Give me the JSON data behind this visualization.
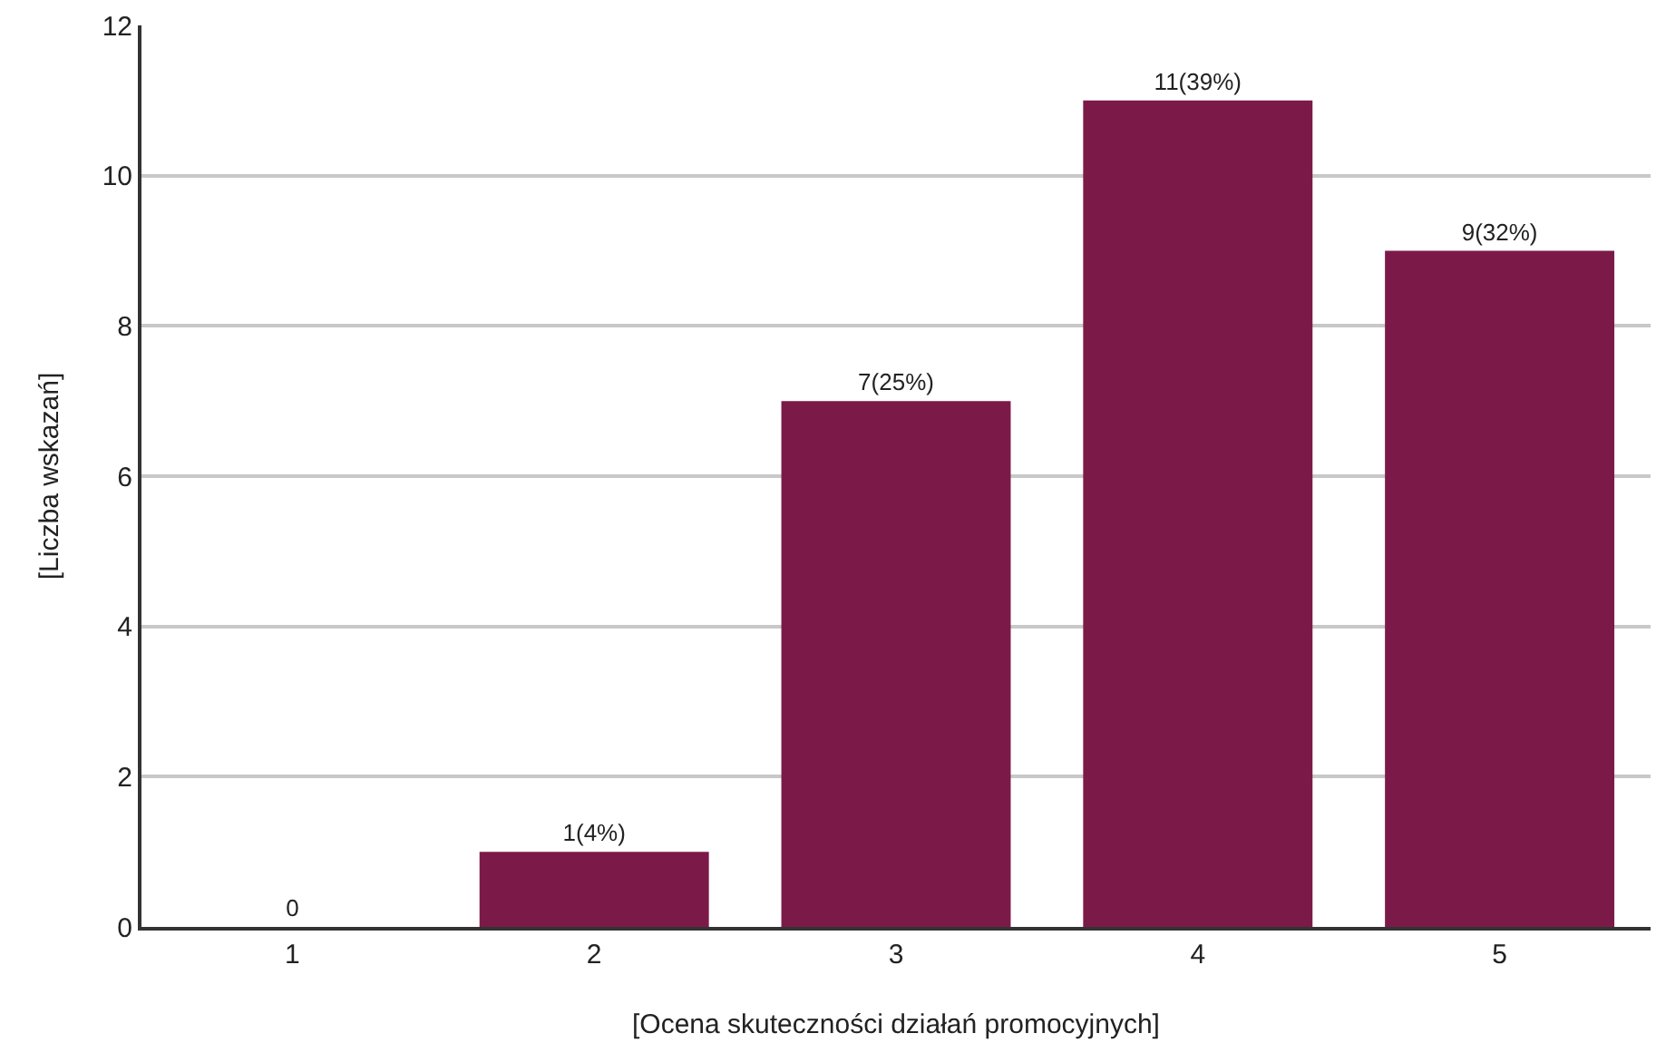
{
  "chart_data": {
    "type": "bar",
    "xlabel": "[Ocena skuteczności działań promocyjnych]",
    "ylabel": "[Liczba wskazań]",
    "categories": [
      "1",
      "2",
      "3",
      "4",
      "5"
    ],
    "values": [
      0,
      1,
      7,
      11,
      9
    ],
    "value_labels": [
      "0",
      "1(4%)",
      "7(25%)",
      "11(39%)",
      "9(32%)"
    ],
    "color": "#7b1a48",
    "ylim": [
      0,
      12
    ],
    "yticks": [
      0,
      2,
      4,
      6,
      8,
      10,
      12
    ],
    "grid": "y",
    "legend": false
  }
}
